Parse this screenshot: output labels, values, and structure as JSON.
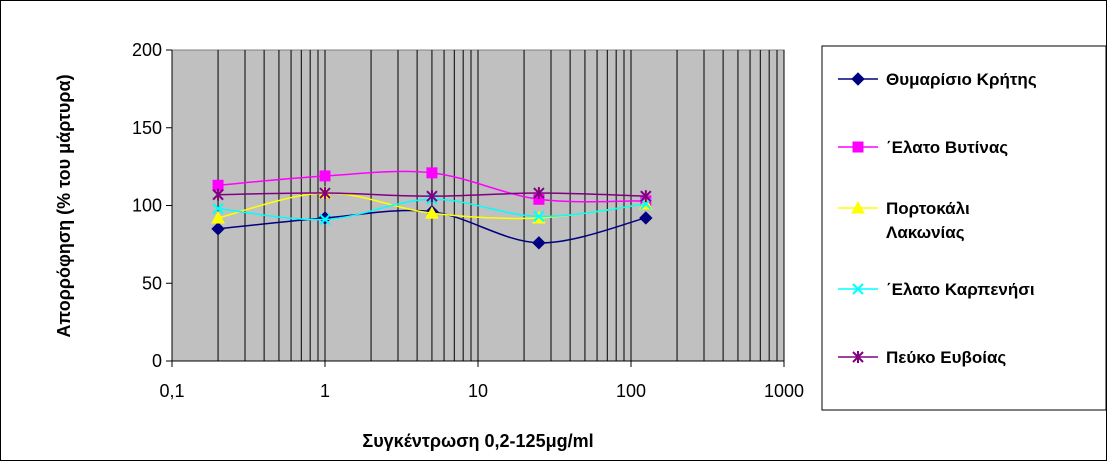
{
  "chart_data": {
    "type": "line",
    "title": "",
    "xlabel": "Συγκέντρωση 0,2-125μg/ml",
    "ylabel": "Απορρόφηση (% του μάρτυρα)",
    "x_scale": "log",
    "xlim": [
      0.1,
      1000
    ],
    "ylim": [
      0,
      200
    ],
    "x_ticks": [
      0.1,
      1,
      10,
      100,
      1000
    ],
    "x_tick_labels": [
      "0,1",
      "1",
      "10",
      "100",
      "1000"
    ],
    "y_ticks": [
      0,
      50,
      100,
      150,
      200
    ],
    "y_tick_labels": [
      "0",
      "50",
      "100",
      "150",
      "200"
    ],
    "grid": {
      "vertical": true,
      "horizontal": false
    },
    "plot_background": "#c0c0c0",
    "legend_position": "right",
    "x": [
      0.2,
      1,
      5,
      25,
      125
    ],
    "series": [
      {
        "name": "Θυμαρίσιο Κρήτης",
        "values": [
          85,
          92,
          96,
          76,
          92
        ],
        "color": "#000080",
        "marker": "diamond"
      },
      {
        "name": "΄Ελατο Βυτίνας",
        "values": [
          113,
          119,
          121,
          104,
          103
        ],
        "color": "#ff00ff",
        "marker": "square"
      },
      {
        "name": "Πορτοκάλι Λακωνίας",
        "values": [
          92,
          108,
          95,
          92,
          101
        ],
        "color": "#ffff00",
        "marker": "triangle"
      },
      {
        "name": "΄Ελατο Καρπενήσι",
        "values": [
          98,
          91,
          104,
          93,
          101
        ],
        "color": "#00ffff",
        "marker": "x"
      },
      {
        "name": "Πεύκο Ευβοίας",
        "values": [
          107,
          108,
          106,
          108,
          106
        ],
        "color": "#800080",
        "marker": "star"
      }
    ]
  }
}
